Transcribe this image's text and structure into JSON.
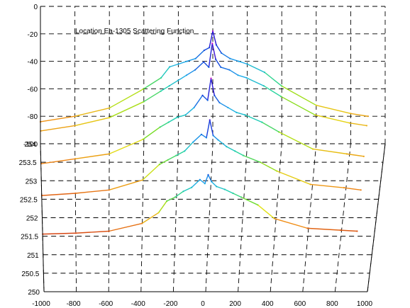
{
  "chart_data": {
    "type": "line",
    "title": "Location Ea-1305 Scattering Function",
    "x_axis": {
      "range": [
        -1000,
        1000
      ],
      "ticks": [
        "-1000",
        "-800",
        "-600",
        "-400",
        "-200",
        "0",
        "200",
        "400",
        "600",
        "800",
        "1000"
      ]
    },
    "y_axis": {
      "range": [
        250,
        254
      ],
      "ticks": [
        "250",
        "250.5",
        "251",
        "251.5",
        "252",
        "252.5",
        "253",
        "253.5",
        "254"
      ]
    },
    "z_axis": {
      "range": [
        -100,
        0
      ],
      "ticks": [
        "0",
        "-20",
        "-40",
        "-60",
        "-80",
        "-100"
      ]
    },
    "grid": true,
    "colormap": "jet",
    "series": [
      {
        "y": 251.4,
        "points": [
          [
            -1000,
            -94
          ],
          [
            -800,
            -93
          ],
          [
            -600,
            -91
          ],
          [
            -400,
            -83
          ],
          [
            -300,
            -72
          ],
          [
            -250,
            -60
          ],
          [
            -200,
            -56
          ],
          [
            -150,
            -50
          ],
          [
            -100,
            -46
          ],
          [
            -50,
            -38
          ],
          [
            -20,
            -42
          ],
          [
            0,
            -33
          ],
          [
            20,
            -40
          ],
          [
            50,
            -45
          ],
          [
            100,
            -48
          ],
          [
            150,
            -52
          ],
          [
            200,
            -56
          ],
          [
            300,
            -64
          ],
          [
            400,
            -78
          ],
          [
            600,
            -88
          ],
          [
            800,
            -90
          ],
          [
            900,
            -91
          ]
        ]
      },
      {
        "y": 252.3,
        "points": [
          [
            -1000,
            -90
          ],
          [
            -800,
            -88
          ],
          [
            -600,
            -85
          ],
          [
            -400,
            -76
          ],
          [
            -300,
            -62
          ],
          [
            -250,
            -58
          ],
          [
            -200,
            -54
          ],
          [
            -150,
            -50
          ],
          [
            -100,
            -42
          ],
          [
            -50,
            -35
          ],
          [
            -20,
            -38
          ],
          [
            0,
            -22
          ],
          [
            20,
            -36
          ],
          [
            50,
            -40
          ],
          [
            100,
            -46
          ],
          [
            150,
            -50
          ],
          [
            200,
            -54
          ],
          [
            300,
            -60
          ],
          [
            400,
            -68
          ],
          [
            600,
            -80
          ],
          [
            800,
            -83
          ],
          [
            900,
            -85
          ]
        ]
      },
      {
        "y": 253.0,
        "points": [
          [
            -1000,
            -86
          ],
          [
            -800,
            -82
          ],
          [
            -600,
            -78
          ],
          [
            -400,
            -66
          ],
          [
            -300,
            -56
          ],
          [
            -250,
            -52
          ],
          [
            -200,
            -48
          ],
          [
            -150,
            -46
          ],
          [
            -100,
            -40
          ],
          [
            -50,
            -30
          ],
          [
            -20,
            -34
          ],
          [
            0,
            -16
          ],
          [
            20,
            -30
          ],
          [
            50,
            -36
          ],
          [
            100,
            -40
          ],
          [
            150,
            -44
          ],
          [
            200,
            -46
          ],
          [
            300,
            -52
          ],
          [
            400,
            -60
          ],
          [
            600,
            -74
          ],
          [
            800,
            -78
          ],
          [
            900,
            -80
          ]
        ]
      },
      {
        "y": 253.7,
        "points": [
          [
            -1000,
            -82
          ],
          [
            -800,
            -78
          ],
          [
            -600,
            -72
          ],
          [
            -400,
            -60
          ],
          [
            -300,
            -52
          ],
          [
            -250,
            -48
          ],
          [
            -200,
            -44
          ],
          [
            -150,
            -40
          ],
          [
            -100,
            -36
          ],
          [
            -50,
            -30
          ],
          [
            -20,
            -34
          ],
          [
            0,
            -16
          ],
          [
            20,
            -28
          ],
          [
            50,
            -34
          ],
          [
            100,
            -36
          ],
          [
            150,
            -40
          ],
          [
            200,
            -42
          ],
          [
            300,
            -48
          ],
          [
            400,
            -56
          ],
          [
            600,
            -70
          ],
          [
            800,
            -76
          ],
          [
            900,
            -78
          ]
        ]
      },
      {
        "y": 254.0,
        "points": [
          [
            -1000,
            -84
          ],
          [
            -800,
            -80
          ],
          [
            -600,
            -74
          ],
          [
            -400,
            -60
          ],
          [
            -300,
            -52
          ],
          [
            -250,
            -44
          ],
          [
            -200,
            -42
          ],
          [
            -150,
            -40
          ],
          [
            -100,
            -38
          ],
          [
            -50,
            -32
          ],
          [
            -20,
            -30
          ],
          [
            0,
            -18
          ],
          [
            20,
            -28
          ],
          [
            50,
            -34
          ],
          [
            100,
            -38
          ],
          [
            150,
            -40
          ],
          [
            200,
            -42
          ],
          [
            300,
            -48
          ],
          [
            400,
            -58
          ],
          [
            600,
            -72
          ],
          [
            800,
            -78
          ],
          [
            900,
            -80
          ]
        ]
      }
    ]
  }
}
